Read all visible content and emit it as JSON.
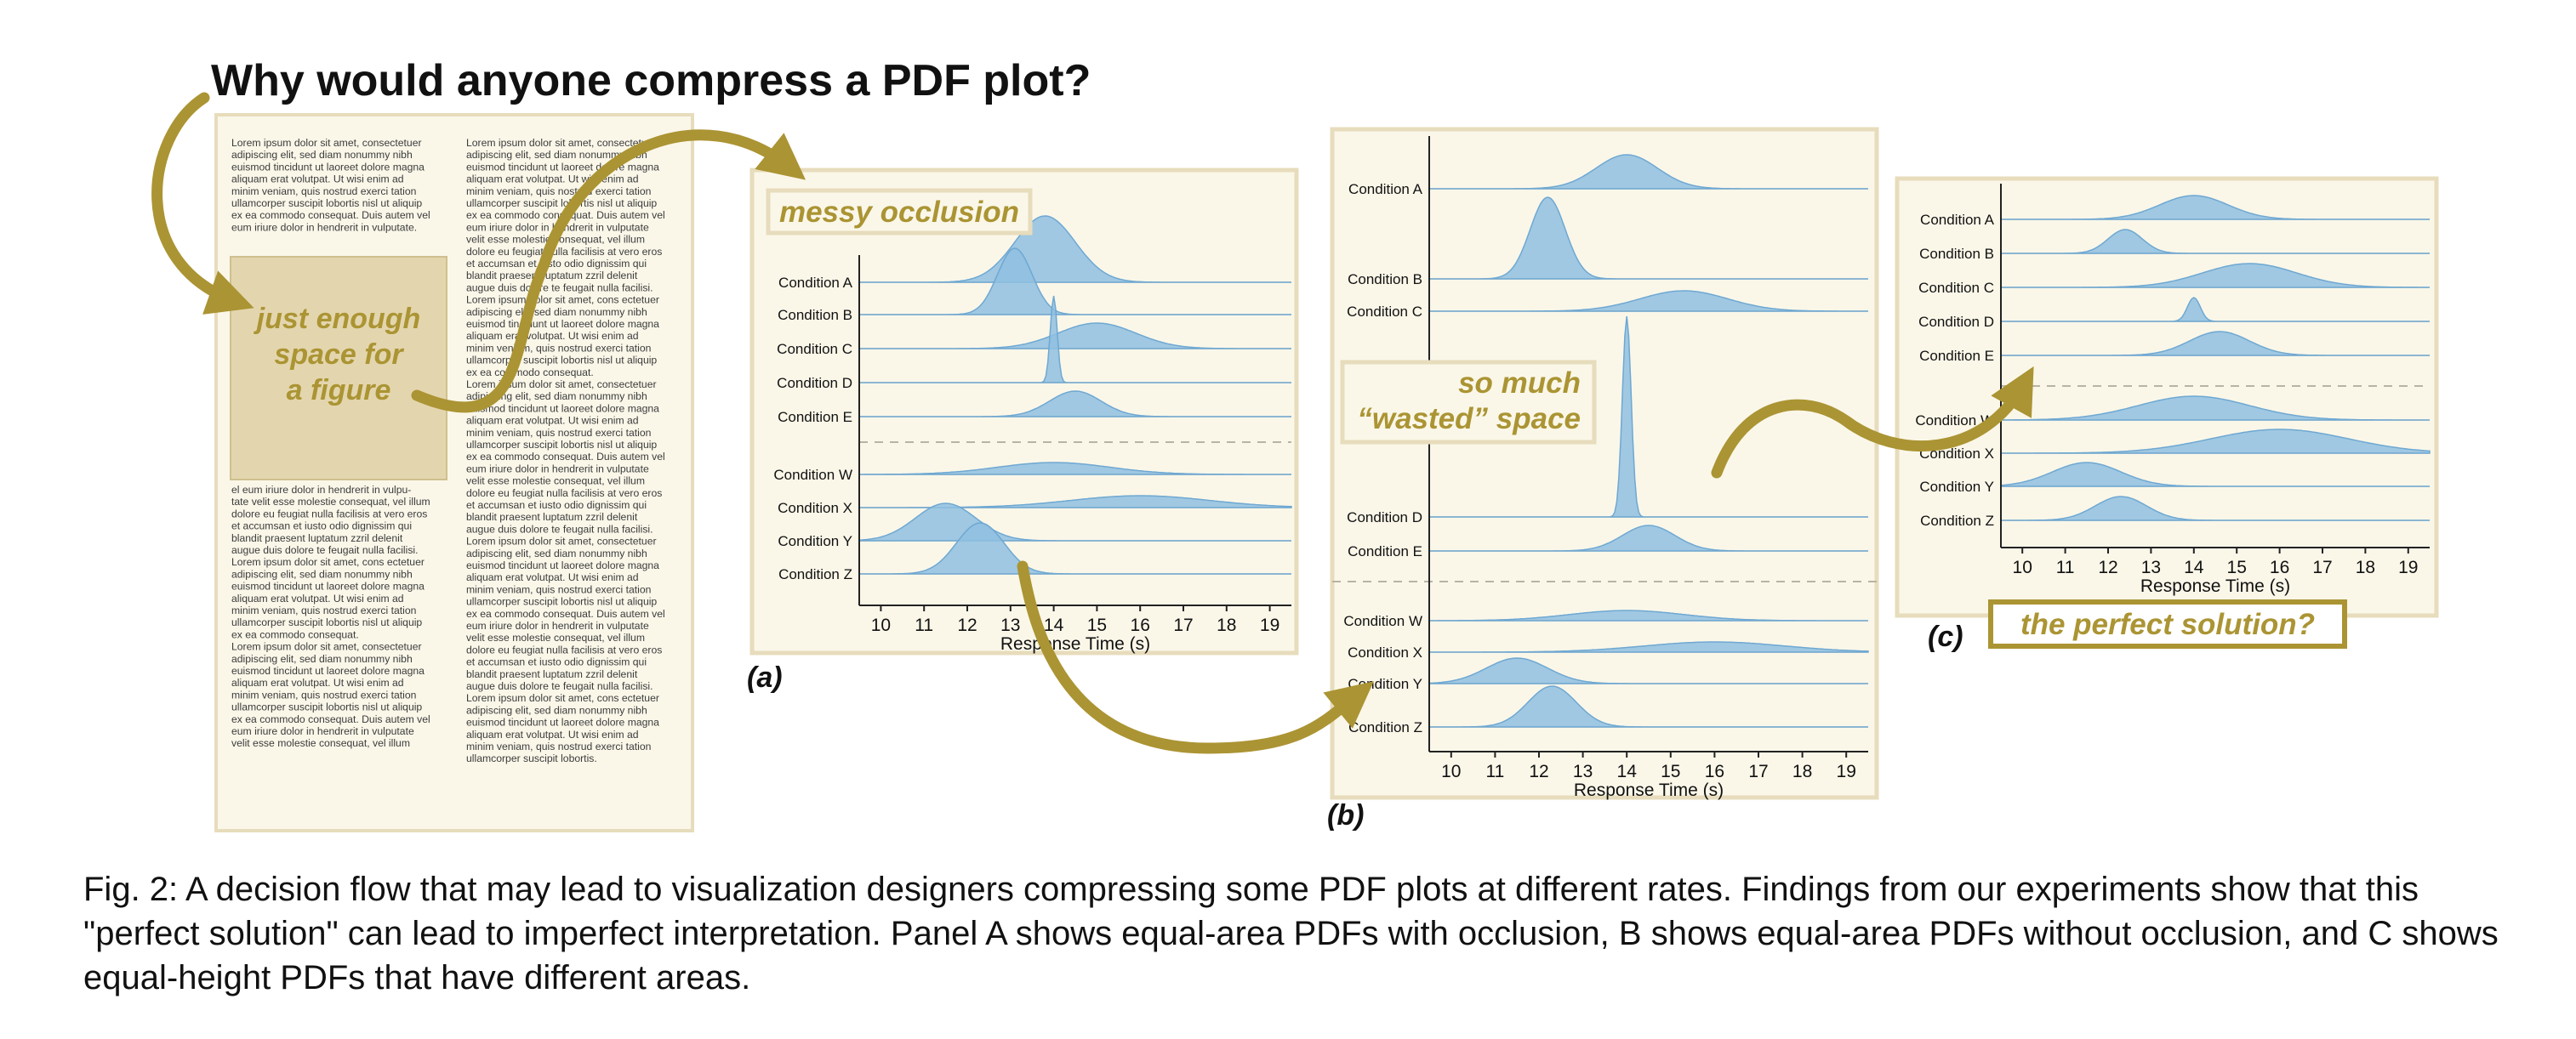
{
  "title": "Why would anyone compress a PDF plot?",
  "doc": {
    "col1": [
      "Lorem ipsum dolor sit amet, consectetuer",
      "adipiscing elit, sed diam nonummy nibh",
      "euismod tincidunt ut laoreet dolore magna",
      "aliquam erat volutpat. Ut wisi enim ad",
      "minim veniam, quis nostrud exerci tation",
      "ullamcorper suscipit lobortis nisl ut aliquip",
      "ex ea commodo consequat. Duis autem vel",
      "eum iriure dolor in hendrerit in vulputate."
    ],
    "figure_text": [
      "just enough",
      "space for",
      "a figure"
    ],
    "col1_after": [
      "el eum iriure dolor in hendrerit in vulpu-",
      "tate velit esse molestie consequat, vel illum",
      "dolore eu feugiat nulla facilisis at vero eros",
      "et accumsan et iusto odio dignissim qui",
      "blandit praesent luptatum zzril delenit",
      "augue duis dolore te feugait nulla facilisi.",
      "Lorem ipsum dolor sit amet, cons ectetuer",
      "adipiscing elit, sed diam nonummy nibh",
      "euismod tincidunt ut laoreet dolore magna",
      "aliquam erat volutpat. Ut wisi enim ad",
      "minim veniam, quis nostrud exerci tation",
      "ullamcorper suscipit lobortis nisl ut aliquip",
      "ex ea commodo consequat.",
      "Lorem ipsum dolor sit amet, consectetuer",
      "adipiscing elit, sed diam nonummy nibh",
      "euismod tincidunt ut laoreet dolore magna",
      "aliquam erat volutpat. Ut wisi enim ad",
      "minim veniam, quis nostrud exerci tation",
      "ullamcorper suscipit lobortis nisl ut aliquip",
      "ex ea commodo consequat. Duis autem vel",
      "eum iriure dolor in hendrerit in vulputate",
      "velit esse molestie consequat, vel illum"
    ],
    "col2": [
      "Lorem ipsum dolor sit amet, consectetuer",
      "adipiscing elit, sed diam nonummy nibh",
      "euismod tincidunt ut laoreet dolore magna",
      "aliquam erat volutpat. Ut wisi enim ad",
      "minim veniam, quis nostrud exerci tation",
      "ullamcorper suscipit lobortis nisl ut aliquip",
      "ex ea commodo consequat. Duis autem vel",
      "eum iriure dolor in hendrerit in vulputate",
      "velit esse molestie consequat, vel illum",
      "dolore eu feugiat nulla facilisis at vero eros",
      "et accumsan et iusto odio dignissim qui",
      "blandit praesent luptatum zzril delenit",
      "augue duis dolore te feugait nulla facilisi.",
      "Lorem ipsum dolor sit amet, cons ectetuer",
      "adipiscing elit, sed diam nonummy nibh",
      "euismod tincidunt ut laoreet dolore magna",
      "aliquam erat volutpat. Ut wisi enim ad",
      "minim veniam, quis nostrud exerci tation",
      "ullamcorper suscipit lobortis nisl ut aliquip",
      "ex ea commodo consequat.",
      "Lorem ipsum dolor sit amet, consectetuer",
      "adipiscing elit, sed diam nonummy nibh",
      "euismod tincidunt ut laoreet dolore magna",
      "aliquam erat volutpat. Ut wisi enim ad",
      "minim veniam, quis nostrud exerci tation",
      "ullamcorper suscipit lobortis nisl ut aliquip",
      "ex ea commodo consequat. Duis autem vel",
      "eum iriure dolor in hendrerit in vulputate",
      "velit esse molestie consequat, vel illum",
      "dolore eu feugiat nulla facilisis at vero eros",
      "et accumsan et iusto odio dignissim qui",
      "blandit praesent luptatum zzril delenit",
      "augue duis dolore te feugait nulla facilisi.",
      "Lorem ipsum dolor sit amet, consectetuer",
      "adipiscing elit, sed diam nonummy nibh",
      "euismod tincidunt ut laoreet dolore magna",
      "aliquam erat volutpat. Ut wisi enim ad",
      "minim veniam, quis nostrud exerci tation",
      "ullamcorper suscipit lobortis nisl ut aliquip",
      "ex ea commodo consequat. Duis autem vel",
      "eum iriure dolor in hendrerit in vulputate",
      "velit esse molestie consequat, vel illum",
      "dolore eu feugiat nulla facilisis at vero eros",
      "et accumsan et iusto odio dignissim qui",
      "blandit praesent luptatum zzril delenit",
      "augue duis dolore te feugait nulla facilisi.",
      "Lorem ipsum dolor sit amet, cons ectetuer",
      "adipiscing elit, sed diam nonummy nibh",
      "euismod tincidunt ut laoreet dolore magna",
      "aliquam erat volutpat. Ut wisi enim ad",
      "minim veniam, quis nostrud exerci tation",
      "ullamcorper suscipit lobortis."
    ]
  },
  "annotations": {
    "messy": "messy occlusion",
    "wasted": [
      "so much",
      "“wasted” space"
    ],
    "perfect": "the perfect solution?"
  },
  "colors": {
    "gold": "#ab9433",
    "panel_bg": "#faf7e9",
    "panel_border": "#e7dcbc",
    "figure_box": "#e3d6ae",
    "density_fill": "#8fbfe0",
    "density_stroke": "#6fa8d2"
  },
  "chart_data": [
    {
      "type": "ridgeline",
      "panel_label": "(a)",
      "xlabel": "Response Time (s)",
      "xticks": [
        10,
        11,
        12,
        13,
        14,
        15,
        16,
        17,
        18,
        19
      ],
      "xlim": [
        9.5,
        19.5
      ],
      "rows": [
        {
          "label": "Condition A",
          "mean": 13.8,
          "sd": 0.7
        },
        {
          "label": "Condition B",
          "mean": 13.1,
          "sd": 0.4
        },
        {
          "label": "Condition C",
          "mean": 15.0,
          "sd": 0.9
        },
        {
          "label": "Condition D",
          "mean": 14.0,
          "sd": 0.08
        },
        {
          "label": "Condition E",
          "mean": 14.5,
          "sd": 0.6
        },
        {
          "label": "Condition W",
          "mean": 14.0,
          "sd": 1.3
        },
        {
          "label": "Condition X",
          "mean": 16.0,
          "sd": 1.6
        },
        {
          "label": "Condition Y",
          "mean": 11.5,
          "sd": 0.7
        },
        {
          "label": "Condition Z",
          "mean": 12.3,
          "sd": 0.55
        }
      ]
    },
    {
      "type": "ridgeline",
      "panel_label": "(b)",
      "xlabel": "Response Time (s)",
      "xticks": [
        10,
        11,
        12,
        13,
        14,
        15,
        16,
        17,
        18,
        19
      ],
      "xlim": [
        9.5,
        19.5
      ],
      "rows": [
        {
          "label": "Condition A",
          "mean": 14.0,
          "sd": 0.7
        },
        {
          "label": "Condition B",
          "mean": 12.2,
          "sd": 0.4
        },
        {
          "label": "Condition C",
          "mean": 15.3,
          "sd": 1.0
        },
        {
          "label": "Condition D",
          "mean": 14.0,
          "sd": 0.1
        },
        {
          "label": "Condition E",
          "mean": 14.5,
          "sd": 0.6
        },
        {
          "label": "Condition W",
          "mean": 14.0,
          "sd": 1.3
        },
        {
          "label": "Condition X",
          "mean": 16.0,
          "sd": 1.6
        },
        {
          "label": "Condition Y",
          "mean": 11.5,
          "sd": 0.7
        },
        {
          "label": "Condition Z",
          "mean": 12.3,
          "sd": 0.55
        }
      ]
    },
    {
      "type": "ridgeline",
      "panel_label": "(c)",
      "xlabel": "Response Time (s)",
      "xticks": [
        10,
        11,
        12,
        13,
        14,
        15,
        16,
        17,
        18,
        19
      ],
      "xlim": [
        9.5,
        19.5
      ],
      "rows": [
        {
          "label": "Condition A",
          "mean": 14.0,
          "sd": 0.8
        },
        {
          "label": "Condition B",
          "mean": 12.4,
          "sd": 0.4
        },
        {
          "label": "Condition C",
          "mean": 15.3,
          "sd": 1.1
        },
        {
          "label": "Condition D",
          "mean": 14.0,
          "sd": 0.15
        },
        {
          "label": "Condition E",
          "mean": 14.6,
          "sd": 0.7
        },
        {
          "label": "Condition W",
          "mean": 14.0,
          "sd": 1.3
        },
        {
          "label": "Condition X",
          "mean": 16.0,
          "sd": 1.6
        },
        {
          "label": "Condition Y",
          "mean": 11.5,
          "sd": 0.8
        },
        {
          "label": "Condition Z",
          "mean": 12.3,
          "sd": 0.6
        }
      ]
    }
  ],
  "caption": "Fig. 2: A decision flow that may lead to visualization designers compressing some PDF plots at different rates. Findings from our experiments show that this \"perfect solution\" can lead to imperfect interpretation. Panel A shows equal-area PDFs with occlusion, B shows equal-area PDFs without occlusion, and C shows equal-height PDFs that have different areas."
}
